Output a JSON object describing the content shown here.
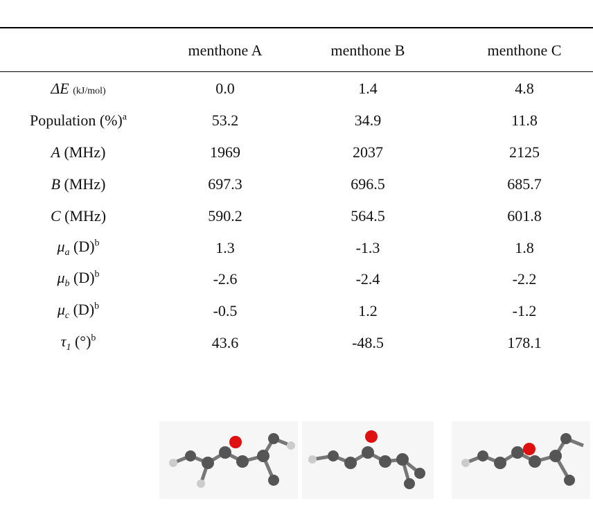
{
  "table": {
    "columns": [
      "menthone A",
      "menthone B",
      "menthone C"
    ],
    "rows": [
      {
        "symbol": "ΔE",
        "unit": "(kJ/mol)",
        "values": [
          "0.0",
          "1.4",
          "4.8"
        ]
      },
      {
        "text": "Population (%)",
        "note": "a",
        "values": [
          "53.2",
          "34.9",
          "11.8"
        ]
      },
      {
        "symbol": "A",
        "text": "(MHz)",
        "values": [
          "1969",
          "2037",
          "2125"
        ]
      },
      {
        "symbol": "B",
        "text": "(MHz)",
        "values": [
          "697.3",
          "696.5",
          "685.7"
        ]
      },
      {
        "symbol": "C",
        "text": "(MHz)",
        "values": [
          "590.2",
          "564.5",
          "601.8"
        ]
      },
      {
        "symbol": "μ",
        "sub": "a",
        "text": "(D)",
        "note": "b",
        "values": [
          "1.3",
          "-1.3",
          "1.8"
        ]
      },
      {
        "symbol": "μ",
        "sub": "b",
        "text": "(D)",
        "note": "b",
        "values": [
          "-2.6",
          "-2.4",
          "-2.2"
        ]
      },
      {
        "symbol": "μ",
        "sub": "c",
        "text": "(D)",
        "note": "b",
        "values": [
          "-0.5",
          "1.2",
          "-1.2"
        ]
      },
      {
        "symbol": "τ",
        "sub": "1",
        "text": "(°)",
        "note": "b",
        "values": [
          "43.6",
          "-48.5",
          "178.1"
        ]
      }
    ]
  }
}
